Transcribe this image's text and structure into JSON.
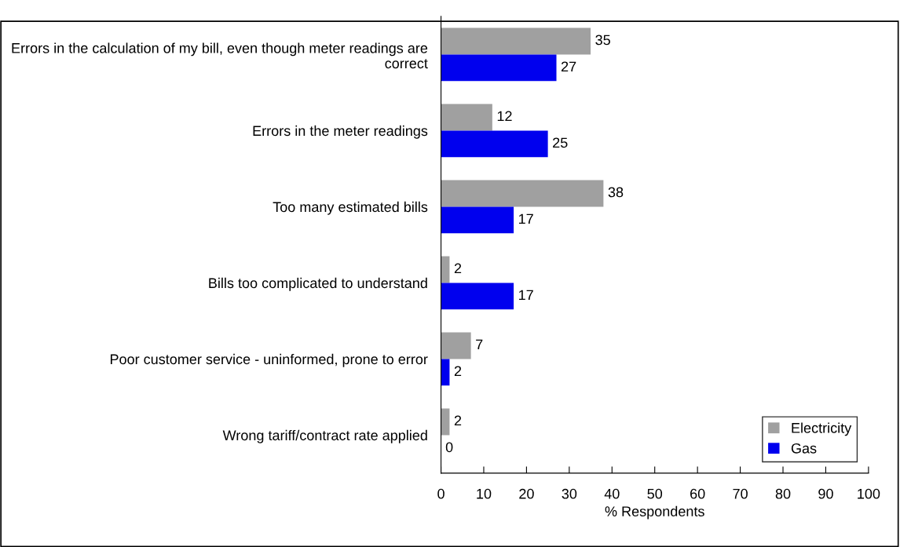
{
  "chart_data": {
    "type": "bar",
    "orientation": "horizontal",
    "xlabel": "% Respondents",
    "categories": [
      "Errors in the calculation of my bill, even though meter readings are correct",
      "Errors in the meter readings",
      "Too many estimated bills",
      "Bills too complicated to understand",
      "Poor customer service - uninformed, prone to error",
      "Wrong tariff/contract rate applied"
    ],
    "series": [
      {
        "name": "Electricity",
        "color": "#a0a0a0",
        "values": [
          35,
          12,
          38,
          2,
          7,
          2
        ]
      },
      {
        "name": "Gas",
        "color": "#0000ee",
        "values": [
          27,
          25,
          17,
          17,
          2,
          0
        ]
      }
    ],
    "xlim": [
      0,
      100
    ],
    "xticks": [
      0,
      10,
      20,
      30,
      40,
      50,
      60,
      70,
      80,
      90,
      100
    ],
    "data_labels": true,
    "grid": false,
    "legend": "bottom right"
  }
}
